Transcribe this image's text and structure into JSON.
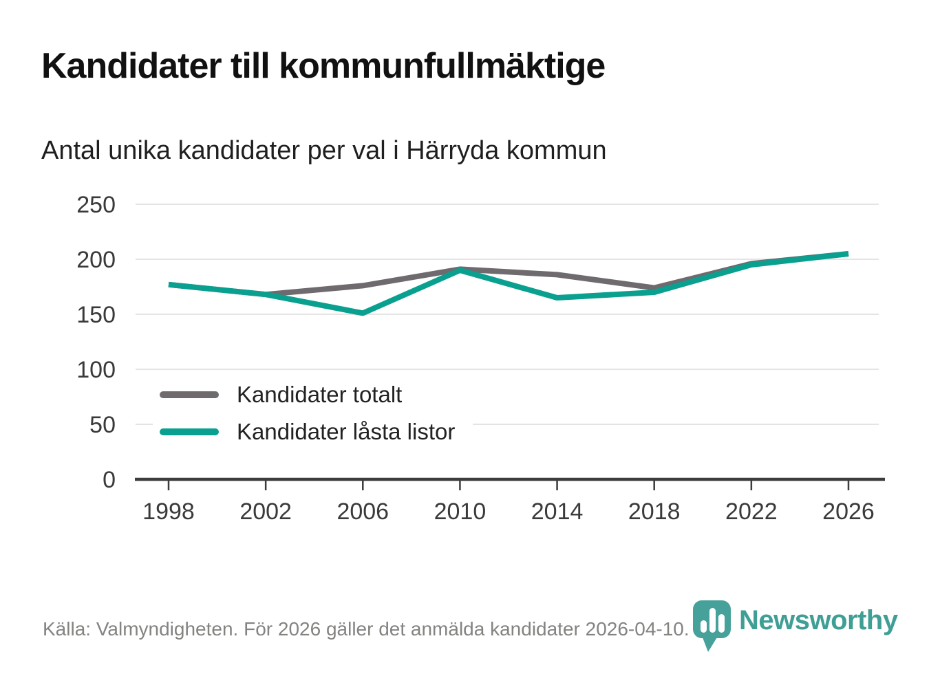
{
  "header": {
    "title": "Kandidater till kommunfullmäktige",
    "subtitle": "Antal unika kandidater per val i Härryda kommun"
  },
  "footer": {
    "source": "Källa: Valmyndigheten. För 2026 gäller det anmälda kandidater 2026-04-10.",
    "brand": "Newsworthy"
  },
  "colors": {
    "total_line": "#6e6a6e",
    "locked_line": "#0aa08f",
    "grid": "#e4e4e4",
    "axis": "#3c3c3c",
    "tick_label": "#3a3a3a",
    "brand_teal": "#3f9e95",
    "source_text": "#858380"
  },
  "chart_data": {
    "type": "line",
    "title": "Kandidater till kommunfullmäktige",
    "subtitle": "Antal unika kandidater per val i Härryda kommun",
    "categories": [
      1998,
      2002,
      2006,
      2010,
      2014,
      2018,
      2022,
      2026
    ],
    "series": [
      {
        "name": "Kandidater totalt",
        "color": "#6e6a6e",
        "values": [
          177,
          168,
          176,
          191,
          186,
          174,
          196,
          205
        ]
      },
      {
        "name": "Kandidater låsta listor",
        "color": "#0aa08f",
        "values": [
          177,
          168,
          151,
          190,
          165,
          170,
          195,
          205
        ]
      }
    ],
    "xlabel": "",
    "ylabel": "",
    "ylim": [
      0,
      250
    ],
    "yticks": [
      0,
      50,
      100,
      150,
      200,
      250
    ],
    "grid": true,
    "legend_position": "inside-left"
  }
}
